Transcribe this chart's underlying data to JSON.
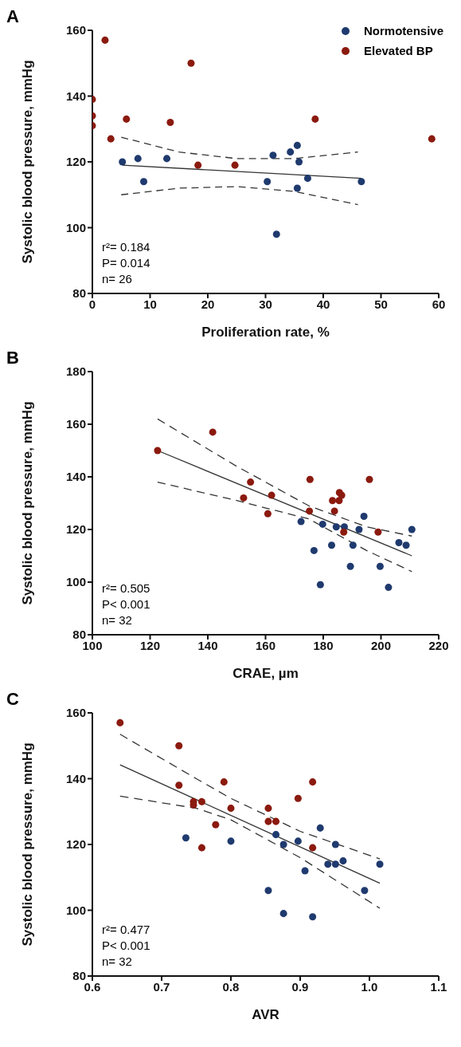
{
  "chart_data": [
    {
      "type": "scatter",
      "title": "A",
      "xlabel": "Proliferation rate, %",
      "ylabel": "Systolic blood pressure, mmHg",
      "xlim": [
        0,
        60
      ],
      "xticks": [
        0,
        10,
        20,
        30,
        40,
        50,
        60
      ],
      "ylim": [
        80,
        160
      ],
      "yticks": [
        80,
        100,
        120,
        140,
        160
      ],
      "legend": "top right",
      "marker": "circle",
      "annotations": [
        "r²= 0.184",
        "P= 0.014",
        "n= 26"
      ],
      "series": [
        {
          "name": "Normotensive",
          "color": "#1f3a6e",
          "x": [
            5.2,
            7.9,
            8.9,
            12.9,
            30.3,
            31.3,
            31.9,
            34.3,
            35.5,
            35.8,
            35.5,
            37.3,
            46.6
          ],
          "values": [
            120,
            121,
            114,
            121,
            114,
            122,
            98,
            123,
            125,
            120,
            112,
            115,
            114
          ]
        },
        {
          "name": "Elevated BP",
          "color": "#8b1a0f",
          "x": [
            2.2,
            0,
            0,
            0,
            3.2,
            5.9,
            13.5,
            17.1,
            18.3,
            24.7,
            38.6,
            58.8
          ],
          "values": [
            157,
            139,
            134,
            131,
            127,
            133,
            132,
            150,
            119,
            119,
            133,
            127
          ]
        },
        {
          "type": "line",
          "marker": "none",
          "color": "#333333",
          "line_style": "solid",
          "x": [
            5.2,
            46.6
          ],
          "values": [
            119,
            115
          ]
        },
        {
          "type": "line",
          "marker": "none",
          "color": "#333333",
          "line_style": "dashed",
          "x": [
            5,
            15,
            25,
            35,
            46
          ],
          "values": [
            127.5,
            123,
            121,
            121,
            123
          ]
        },
        {
          "type": "line",
          "marker": "none",
          "color": "#333333",
          "line_style": "dashed",
          "x": [
            5,
            15,
            25,
            35,
            46
          ],
          "values": [
            110,
            112,
            112.5,
            111,
            107
          ]
        }
      ]
    },
    {
      "type": "scatter",
      "title": "B",
      "xlabel": "CRAE, µm",
      "ylabel": "Systolic blood pressure, mmHg",
      "xlim": [
        100,
        220
      ],
      "xticks": [
        100,
        120,
        140,
        160,
        180,
        200,
        220
      ],
      "ylim": [
        80,
        180
      ],
      "yticks": [
        80,
        100,
        120,
        140,
        160,
        180
      ],
      "marker": "circle",
      "annotations": [
        "r²= 0.505",
        "P< 0.001",
        "n= 32"
      ],
      "series": [
        {
          "color": "#1f3a6e",
          "x": [
            172.3,
            179.8,
            176.8,
            179.0,
            182.9,
            184.5,
            187.3,
            190.3,
            189.4,
            192.4,
            194.1,
            199.7,
            202.6,
            206.2,
            208.7,
            210.7
          ],
          "values": [
            123,
            122,
            112,
            99,
            114,
            121,
            121,
            114,
            106,
            120,
            125,
            106,
            98,
            115,
            114,
            120
          ]
        },
        {
          "color": "#8b1a0f",
          "x": [
            122.6,
            141.7,
            154.8,
            152.4,
            162.1,
            160.8,
            175.4,
            175.2,
            183.2,
            185.5,
            185.6,
            186.4,
            183.9,
            187.1,
            196.0,
            199.0
          ],
          "values": [
            150,
            157,
            138,
            132,
            133,
            126,
            139,
            127,
            131,
            131,
            134,
            133,
            127,
            119,
            139,
            119
          ]
        },
        {
          "type": "line",
          "marker": "none",
          "color": "#333333",
          "line_style": "solid",
          "x": [
            122.6,
            210.7
          ],
          "values": [
            150,
            110
          ]
        },
        {
          "type": "line",
          "marker": "none",
          "color": "#333333",
          "line_style": "dashed",
          "x": [
            122.6,
            150,
            175,
            195,
            210.7
          ],
          "values": [
            162,
            144,
            129,
            121,
            117.5
          ]
        },
        {
          "type": "line",
          "marker": "none",
          "color": "#333333",
          "line_style": "dashed",
          "x": [
            122.6,
            150,
            175,
            195,
            210.7
          ],
          "values": [
            138,
            131,
            124,
            112,
            104
          ]
        }
      ]
    },
    {
      "type": "scatter",
      "title": "C",
      "xlabel": "AVR",
      "ylabel": "Systolic blood pressure, mmHg",
      "xlim": [
        0.6,
        1.1
      ],
      "xticks": [
        0.6,
        0.7,
        0.8,
        0.9,
        {
          "value": 1,
          "label": "1.0"
        },
        1.1
      ],
      "ylim": [
        80,
        160
      ],
      "yticks": [
        80,
        100,
        120,
        140,
        160
      ],
      "marker": "circle",
      "annotations": [
        "r²= 0.477",
        "P< 0.001",
        "n= 32"
      ],
      "series": [
        {
          "color": "#1f3a6e",
          "x": [
            0.735,
            0.8,
            0.854,
            0.865,
            0.876,
            0.876,
            0.897,
            0.907,
            0.918,
            0.929,
            0.94,
            0.951,
            0.951,
            0.962,
            0.993,
            1.015
          ],
          "values": [
            122,
            121,
            106,
            123,
            120,
            99,
            121,
            112,
            98,
            125,
            114,
            114,
            120,
            115,
            106,
            114
          ]
        },
        {
          "color": "#8b1a0f",
          "x": [
            0.64,
            0.725,
            0.725,
            0.746,
            0.746,
            0.758,
            0.758,
            0.778,
            0.79,
            0.8,
            0.854,
            0.854,
            0.865,
            0.897,
            0.918,
            0.918
          ],
          "values": [
            157,
            150,
            138,
            132,
            133,
            133,
            119,
            126,
            139,
            131,
            131,
            127,
            127,
            134,
            139,
            119
          ]
        },
        {
          "type": "line",
          "marker": "none",
          "color": "#333333",
          "line_style": "solid",
          "x": [
            0.64,
            1.015
          ],
          "values": [
            144.2,
            108.2
          ]
        },
        {
          "type": "line",
          "marker": "none",
          "color": "#333333",
          "line_style": "dashed",
          "x": [
            0.64,
            0.75,
            0.8,
            0.9,
            1.015
          ],
          "values": [
            153.5,
            140,
            134,
            124,
            115.6
          ]
        },
        {
          "type": "line",
          "marker": "none",
          "color": "#333333",
          "line_style": "dashed",
          "x": [
            0.64,
            0.75,
            0.8,
            0.9,
            1.015
          ],
          "values": [
            134.7,
            131,
            127.5,
            116,
            100.6
          ]
        }
      ]
    }
  ]
}
